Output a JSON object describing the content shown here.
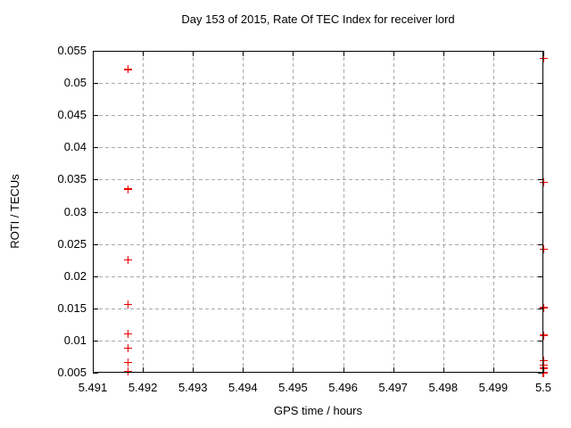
{
  "chart_data": {
    "type": "scatter",
    "title": "Day 153 of 2015, Rate Of TEC Index for receiver lord",
    "xlabel": "GPS time / hours",
    "ylabel": "ROTI / TECUs",
    "xlim": [
      5.491,
      5.5
    ],
    "ylim": [
      0.005,
      0.055
    ],
    "xtick_values": [
      5.491,
      5.492,
      5.493,
      5.494,
      5.495,
      5.496,
      5.497,
      5.498,
      5.499,
      5.5
    ],
    "xtick_labels": [
      "5.491",
      "5.492",
      "5.493",
      "5.494",
      "5.495",
      "5.496",
      "5.497",
      "5.498",
      "5.499",
      "5.5"
    ],
    "ytick_values": [
      0.005,
      0.01,
      0.015,
      0.02,
      0.025,
      0.03,
      0.035,
      0.04,
      0.045,
      0.05,
      0.055
    ],
    "ytick_labels": [
      "0.005",
      "0.01",
      "0.015",
      "0.02",
      "0.025",
      "0.03",
      "0.035",
      "0.04",
      "0.045",
      "0.05",
      "0.055"
    ],
    "grid": true,
    "legend_position": "none",
    "marker": "plus",
    "marker_color": "#ee0000",
    "grid_color": "#aaaaaa",
    "axis_color": "#000000",
    "background_color": "#ffffff",
    "series": [
      {
        "name": "ROTI",
        "points": [
          [
            5.4917,
            0.0521
          ],
          [
            5.4917,
            0.0335
          ],
          [
            5.4917,
            0.0225
          ],
          [
            5.4917,
            0.0156
          ],
          [
            5.4917,
            0.011
          ],
          [
            5.4917,
            0.0088
          ],
          [
            5.4917,
            0.0066
          ],
          [
            5.4917,
            0.0052
          ],
          [
            5.5,
            0.0538
          ],
          [
            5.5,
            0.0346
          ],
          [
            5.5,
            0.0242
          ],
          [
            5.5,
            0.0151
          ],
          [
            5.5,
            0.0108
          ],
          [
            5.5,
            0.0069
          ],
          [
            5.5,
            0.0062
          ],
          [
            5.5,
            0.0057
          ],
          [
            5.5,
            0.005
          ]
        ]
      }
    ]
  }
}
